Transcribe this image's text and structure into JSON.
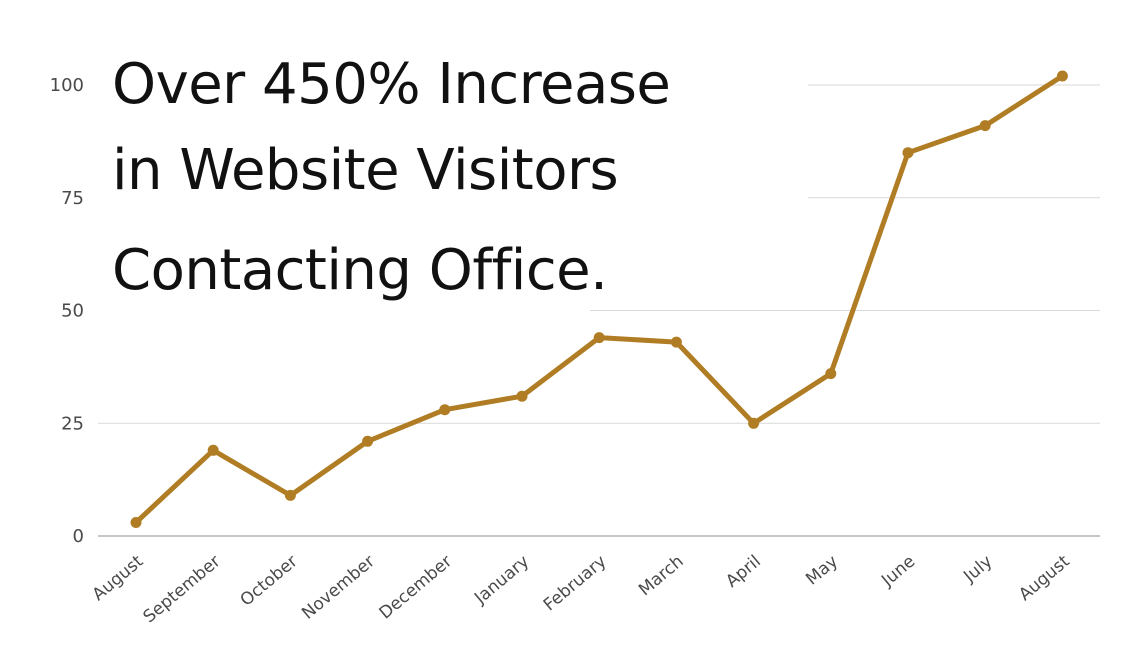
{
  "chart_data": {
    "type": "line",
    "title_lines": [
      "Over 450% Increase",
      "in Website Visitors",
      "Contacting Office."
    ],
    "xlabel": "",
    "ylabel": "",
    "categories": [
      "August",
      "September",
      "October",
      "November",
      "December",
      "January",
      "February",
      "March",
      "April",
      "May",
      "June",
      "July",
      "August"
    ],
    "series": [
      {
        "values": [
          3,
          19,
          9,
          21,
          28,
          31,
          44,
          43,
          25,
          36,
          85,
          91,
          102
        ]
      }
    ],
    "ylim": [
      0,
      100
    ],
    "yticks": [
      0,
      25,
      50,
      75,
      100
    ],
    "grid": true,
    "legend": "none",
    "line_color": "#B07D25",
    "grid_color": "#D9D9D9"
  }
}
